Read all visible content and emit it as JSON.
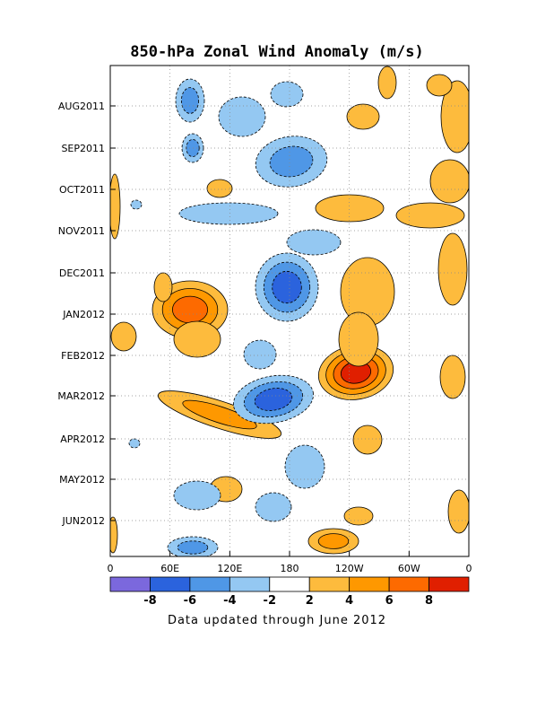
{
  "chart_data": {
    "type": "heatmap",
    "title": "850-hPa Zonal Wind Anomaly (m/s)",
    "xlabel": "",
    "ylabel": "",
    "x_ticks": [
      "0",
      "60E",
      "120E",
      "180",
      "120W",
      "60W",
      "0"
    ],
    "y_ticks": [
      "AUG2011",
      "SEP2011",
      "OCT2011",
      "NOV2011",
      "DEC2011",
      "JAN2012",
      "FEB2012",
      "MAR2012",
      "APR2012",
      "MAY2012",
      "JUN2012"
    ],
    "colorbar": {
      "labels": [
        "-8",
        "-6",
        "-4",
        "-2",
        "2",
        "4",
        "6",
        "8"
      ],
      "bins": [
        {
          "range": "< -8",
          "color": "#7b68dd"
        },
        {
          "range": "-8 to -6",
          "color": "#2b63dd"
        },
        {
          "range": "-6 to -4",
          "color": "#4f97e6"
        },
        {
          "range": "-4 to -2",
          "color": "#94c8f2"
        },
        {
          "range": "-2 to 2",
          "color": "#ffffff"
        },
        {
          "range": "2 to 4",
          "color": "#fdbb3d"
        },
        {
          "range": "4 to 6",
          "color": "#fe9800"
        },
        {
          "range": "6 to 8",
          "color": "#fd6a00"
        },
        {
          "range": "> 8",
          "color": "#e01f00"
        }
      ]
    },
    "grid": true,
    "anomaly_features": [
      {
        "region": "120W",
        "period": "FEB2012-MAR2012",
        "level": "> 8"
      },
      {
        "region": "60E-90E",
        "period": "JAN2012",
        "level": "6 to 8"
      },
      {
        "region": "150E-180",
        "period": "DEC2011",
        "level": "-8 to -6"
      },
      {
        "region": "150E-180",
        "period": "MAR2012",
        "level": "-8 to -6"
      },
      {
        "region": "60E-120E",
        "period": "MAR2012-APR2012",
        "level": "4 to 6"
      },
      {
        "region": "150W",
        "period": "JUN2012",
        "level": "4 to 6"
      }
    ]
  },
  "footer": "Data updated through June 2012"
}
